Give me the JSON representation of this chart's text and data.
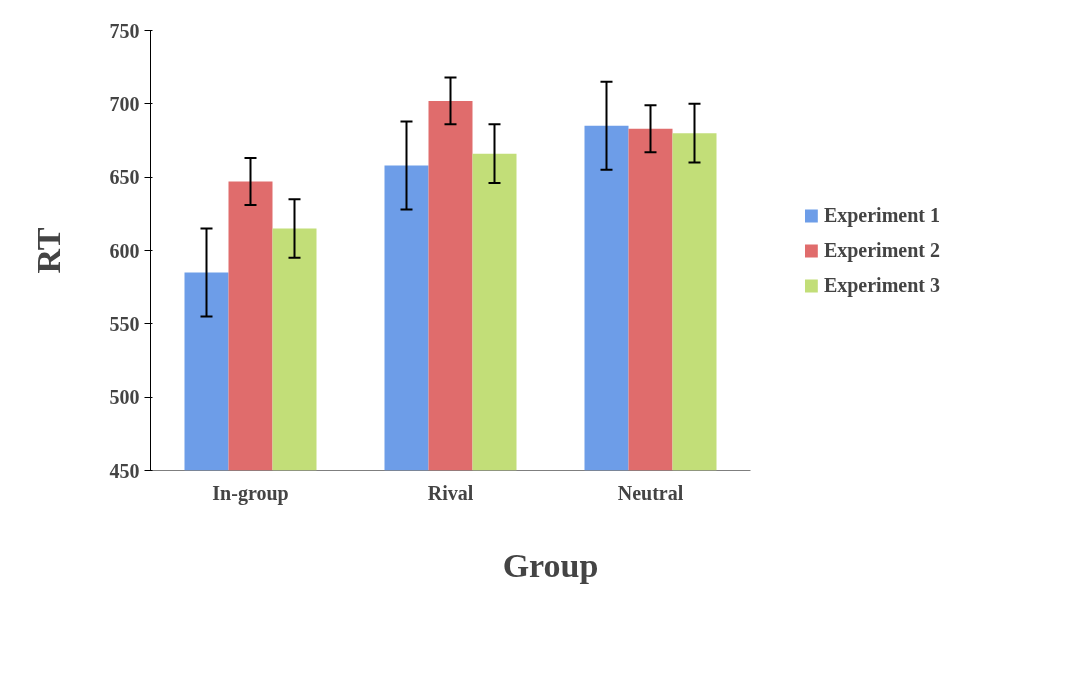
{
  "chart_data": {
    "type": "bar",
    "xlabel": "Group",
    "ylabel": "RT",
    "categories": [
      "In-group",
      "Rival",
      "Neutral"
    ],
    "series": [
      {
        "name": "Experiment 1",
        "color": "#6d9de8",
        "values": [
          585,
          658,
          685
        ],
        "errors": [
          30,
          30,
          30
        ]
      },
      {
        "name": "Experiment 2",
        "color": "#e06c6c",
        "values": [
          647,
          702,
          683
        ],
        "errors": [
          16,
          16,
          16
        ]
      },
      {
        "name": "Experiment 3",
        "color": "#c2de78",
        "values": [
          615,
          666,
          680
        ],
        "errors": [
          20,
          20,
          20
        ]
      }
    ],
    "ylim": [
      450,
      750
    ],
    "yticks": [
      450,
      500,
      550,
      600,
      650,
      700,
      750
    ],
    "grid": false,
    "legend": "right"
  }
}
